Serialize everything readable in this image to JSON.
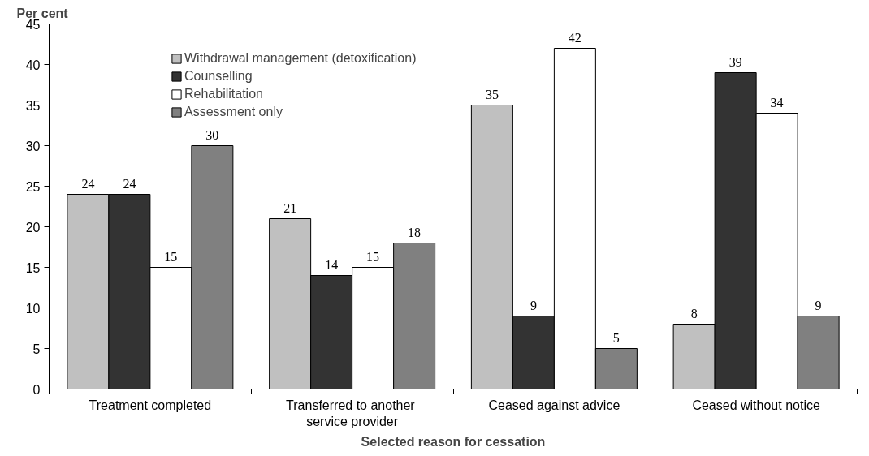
{
  "chart_data": {
    "type": "bar",
    "xlabel": "Selected reason for cessation",
    "ylabel": "Per cent",
    "categories": [
      "Treatment completed",
      "Transferred  to another\nservice provider",
      "Ceased against advice",
      "Ceased without notice"
    ],
    "series": [
      {
        "name": "Withdrawal management (detoxification)",
        "color": "#c0c0c0",
        "values": [
          24,
          21,
          35,
          8
        ]
      },
      {
        "name": "Counselling",
        "color": "#333333",
        "values": [
          24,
          14,
          9,
          39
        ]
      },
      {
        "name": "Rehabilitation",
        "color": "#ffffff",
        "values": [
          15,
          15,
          42,
          34
        ]
      },
      {
        "name": "Assessment only",
        "color": "#808080",
        "values": [
          30,
          18,
          5,
          9
        ]
      }
    ],
    "ylim": [
      0,
      45
    ],
    "yticks": [
      0,
      5,
      10,
      15,
      20,
      25,
      30,
      35,
      40,
      45
    ],
    "data_labels": true,
    "grid": false,
    "legend": "top left"
  }
}
